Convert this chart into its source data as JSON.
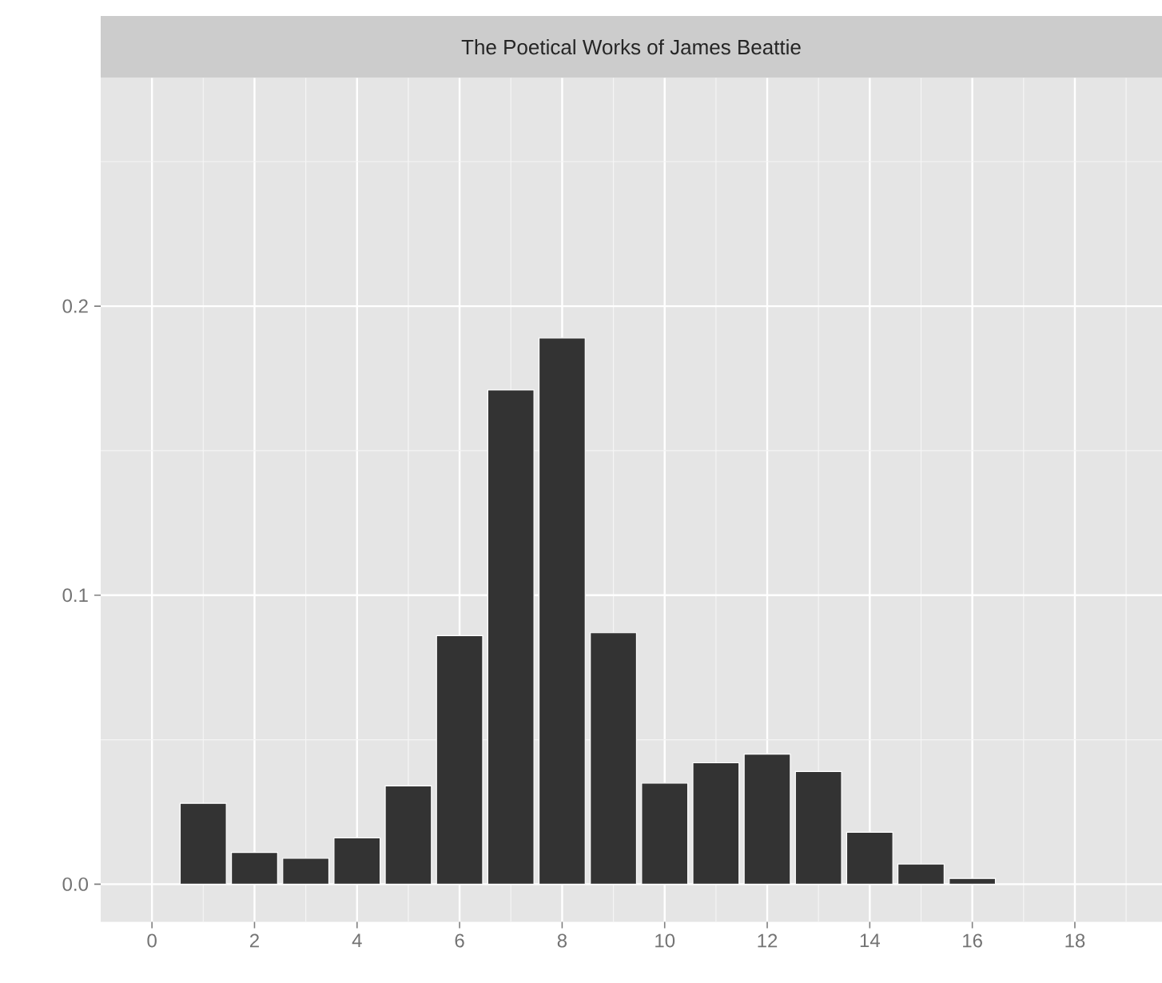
{
  "chart_data": {
    "type": "bar",
    "title": "The Poetical Works of James Beattie",
    "x": [
      1,
      2,
      3,
      4,
      5,
      6,
      7,
      8,
      9,
      10,
      11,
      12,
      13,
      14,
      15,
      16
    ],
    "values": [
      0.028,
      0.011,
      0.009,
      0.016,
      0.034,
      0.086,
      0.171,
      0.189,
      0.087,
      0.035,
      0.042,
      0.045,
      0.039,
      0.018,
      0.007,
      0.002
    ],
    "color": "#333333",
    "xlim": [
      -1,
      19.7
    ],
    "ylim": [
      -0.013,
      0.279
    ],
    "xticks": [
      0,
      2,
      4,
      6,
      8,
      10,
      12,
      14,
      16,
      18
    ],
    "yticks": [
      {
        "value": 0,
        "label": "0.0"
      },
      0.1,
      0.2
    ],
    "grid": true
  }
}
